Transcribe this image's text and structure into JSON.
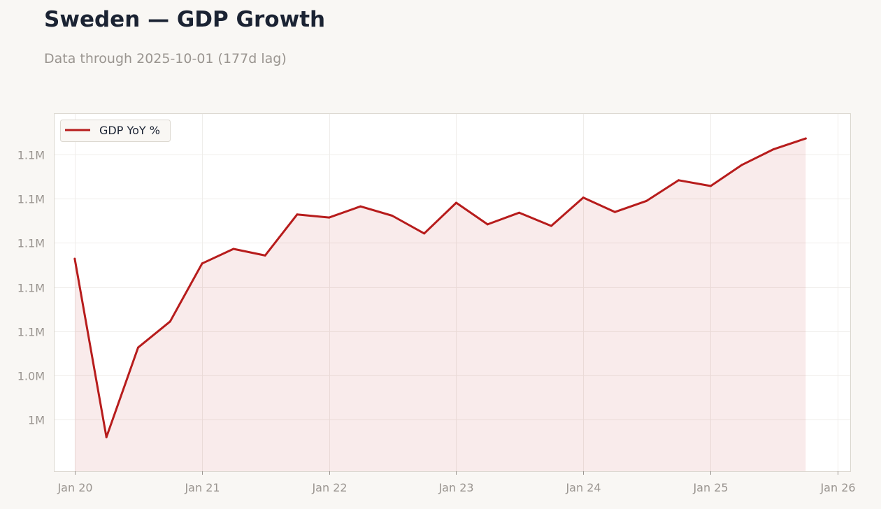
{
  "title": "Sweden — GDP Growth",
  "subtitle": "Data through 2025-10-01 (177d lag)",
  "chart_data": {
    "type": "area",
    "series": [
      {
        "name": "GDP YoY %",
        "color": "#b71c1c",
        "x": [
          "2020-01-01",
          "2020-04-01",
          "2020-07-01",
          "2020-10-01",
          "2021-01-01",
          "2021-04-01",
          "2021-07-01",
          "2021-10-01",
          "2022-01-01",
          "2022-04-01",
          "2022-07-01",
          "2022-10-01",
          "2023-01-01",
          "2023-04-01",
          "2023-07-01",
          "2023-10-01",
          "2024-01-01",
          "2024-04-01",
          "2024-07-01",
          "2024-10-01",
          "2025-01-01",
          "2025-04-01",
          "2025-07-01",
          "2025-10-01"
        ],
        "values": [
          1104840,
          1080620,
          1092790,
          1096330,
          1104210,
          1106180,
          1105290,
          1110860,
          1110440,
          1111950,
          1110690,
          1108280,
          1112450,
          1109510,
          1111100,
          1109300,
          1113150,
          1111190,
          1112700,
          1115500,
          1114720,
          1117590,
          1119720,
          1121170
        ]
      }
    ],
    "yticks": [
      1083000,
      1089000,
      1095000,
      1101000,
      1107000,
      1113000,
      1119000
    ],
    "ytick_labels": [
      "1M",
      "1.0M",
      "1.1M",
      "1.1M",
      "1.1M",
      "1.1M",
      "1.1M"
    ],
    "ylim": [
      1076000,
      1124500
    ],
    "xticks": [
      "2020-01-01",
      "2021-01-01",
      "2022-01-01",
      "2023-01-01",
      "2024-01-01",
      "2025-01-01",
      "2026-01-01"
    ],
    "xtick_labels": [
      "Jan 20",
      "Jan 21",
      "Jan 22",
      "Jan 23",
      "Jan 24",
      "Jan 25",
      "Jan 26"
    ],
    "xlim": [
      "2019-11-04",
      "2026-02-06"
    ],
    "grid": true,
    "legend": "top-left",
    "fill": "#b71c1c"
  }
}
